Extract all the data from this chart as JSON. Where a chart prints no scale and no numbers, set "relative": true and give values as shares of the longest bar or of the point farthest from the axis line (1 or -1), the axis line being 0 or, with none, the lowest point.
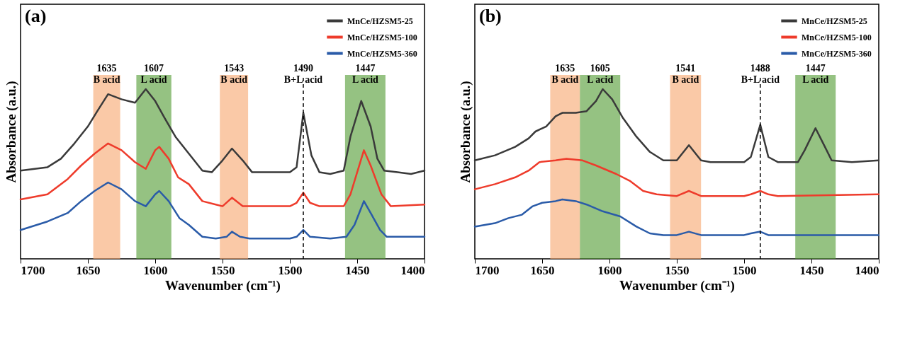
{
  "chart_data": [
    {
      "type": "line",
      "relative": true,
      "xlabel": "Wavenumber (cm⁻¹)",
      "ylabel": "Absorbance (a.u.)",
      "xlim": [
        1700,
        1400
      ],
      "xticks": [
        1700,
        1650,
        1600,
        1550,
        1500,
        1450,
        1400
      ],
      "legend": "top right",
      "annotations": [
        "(a)"
      ],
      "series": [
        {
          "name": "MnCe/HZSM5-25",
          "color": "#3a3a3a",
          "x": [
            1700,
            1680,
            1670,
            1660,
            1650,
            1643,
            1635,
            1625,
            1615,
            1607,
            1600,
            1593,
            1585,
            1575,
            1565,
            1558,
            1550,
            1543,
            1535,
            1528,
            1520,
            1510,
            1500,
            1495,
            1490,
            1484,
            1478,
            1470,
            1460,
            1455,
            1447,
            1440,
            1435,
            1430,
            1420,
            1410,
            1400
          ],
          "values": [
            0.52,
            0.54,
            0.59,
            0.68,
            0.78,
            0.87,
            0.97,
            0.94,
            0.92,
            1.0,
            0.93,
            0.83,
            0.72,
            0.62,
            0.52,
            0.51,
            0.58,
            0.65,
            0.58,
            0.51,
            0.51,
            0.51,
            0.51,
            0.54,
            0.86,
            0.61,
            0.51,
            0.5,
            0.52,
            0.72,
            0.93,
            0.78,
            0.59,
            0.52,
            0.51,
            0.5,
            0.52
          ]
        },
        {
          "name": "MnCe/HZSM5-100",
          "color": "#ee3b2b",
          "x": [
            1700,
            1680,
            1665,
            1655,
            1645,
            1635,
            1625,
            1615,
            1607,
            1600,
            1597,
            1590,
            1583,
            1575,
            1565,
            1555,
            1550,
            1543,
            1535,
            1520,
            1500,
            1495,
            1490,
            1485,
            1478,
            1460,
            1455,
            1445,
            1440,
            1432,
            1425,
            1400
          ],
          "values": [
            0.35,
            0.38,
            0.47,
            0.55,
            0.62,
            0.68,
            0.64,
            0.57,
            0.53,
            0.64,
            0.66,
            0.59,
            0.48,
            0.44,
            0.34,
            0.32,
            0.31,
            0.36,
            0.31,
            0.31,
            0.31,
            0.33,
            0.39,
            0.33,
            0.31,
            0.31,
            0.38,
            0.64,
            0.55,
            0.38,
            0.31,
            0.32
          ]
        },
        {
          "name": "MnCe/HZSM5-360",
          "color": "#2a5ba8",
          "x": [
            1700,
            1680,
            1665,
            1655,
            1645,
            1635,
            1625,
            1615,
            1607,
            1600,
            1597,
            1590,
            1582,
            1575,
            1565,
            1555,
            1547,
            1543,
            1537,
            1530,
            1500,
            1495,
            1490,
            1485,
            1470,
            1458,
            1452,
            1445,
            1440,
            1433,
            1428,
            1400
          ],
          "values": [
            0.17,
            0.22,
            0.27,
            0.34,
            0.4,
            0.45,
            0.41,
            0.34,
            0.31,
            0.38,
            0.4,
            0.34,
            0.24,
            0.2,
            0.13,
            0.12,
            0.13,
            0.16,
            0.13,
            0.12,
            0.12,
            0.13,
            0.17,
            0.13,
            0.12,
            0.13,
            0.2,
            0.34,
            0.27,
            0.17,
            0.13,
            0.13
          ]
        }
      ],
      "bands": [
        {
          "axis": "x",
          "from": 1646,
          "to": 1626,
          "label": "1635\nB acid",
          "color": "#f7a56c"
        },
        {
          "axis": "x",
          "from": 1614,
          "to": 1588,
          "label": "1607\nL acid",
          "color": "#4f9a2f"
        },
        {
          "axis": "x",
          "from": 1552,
          "to": 1531,
          "label": "1543\nB acid",
          "color": "#f7a56c"
        },
        {
          "axis": "x",
          "from": 1459,
          "to": 1429,
          "label": "1447\nL acid",
          "color": "#4f9a2f"
        }
      ],
      "ref_lines": [
        {
          "axis": "x",
          "value": 1490,
          "label": "1490\nB+L acid",
          "color": "#000000",
          "line_style": "dashed"
        }
      ]
    },
    {
      "type": "line",
      "relative": true,
      "xlabel": "Wavenumber (cm⁻¹)",
      "ylabel": "Absorbance (a.u.)",
      "xlim": [
        1700,
        1400
      ],
      "xticks": [
        1700,
        1650,
        1600,
        1550,
        1500,
        1450,
        1400
      ],
      "legend": "top right",
      "annotations": [
        "(b)"
      ],
      "series": [
        {
          "name": "MnCe/HZSM5-25",
          "color": "#3a3a3a",
          "x": [
            1700,
            1685,
            1670,
            1660,
            1655,
            1647,
            1640,
            1635,
            1625,
            1617,
            1610,
            1605,
            1598,
            1590,
            1580,
            1570,
            1560,
            1550,
            1541,
            1532,
            1525,
            1500,
            1495,
            1488,
            1482,
            1475,
            1460,
            1455,
            1447,
            1440,
            1435,
            1420,
            1400
          ],
          "values": [
            0.58,
            0.61,
            0.66,
            0.71,
            0.75,
            0.78,
            0.84,
            0.86,
            0.86,
            0.87,
            0.93,
            1.0,
            0.94,
            0.83,
            0.72,
            0.63,
            0.58,
            0.58,
            0.67,
            0.58,
            0.57,
            0.57,
            0.6,
            0.79,
            0.6,
            0.57,
            0.57,
            0.64,
            0.77,
            0.66,
            0.58,
            0.57,
            0.58
          ]
        },
        {
          "name": "MnCe/HZSM5-100",
          "color": "#ee3b2b",
          "x": [
            1700,
            1685,
            1670,
            1660,
            1652,
            1640,
            1632,
            1620,
            1610,
            1595,
            1585,
            1575,
            1565,
            1550,
            1541,
            1532,
            1500,
            1495,
            1488,
            1482,
            1475,
            1400
          ],
          "values": [
            0.41,
            0.44,
            0.48,
            0.52,
            0.57,
            0.58,
            0.59,
            0.58,
            0.55,
            0.5,
            0.46,
            0.4,
            0.38,
            0.37,
            0.4,
            0.37,
            0.37,
            0.38,
            0.4,
            0.38,
            0.37,
            0.38
          ]
        },
        {
          "name": "MnCe/HZSM5-360",
          "color": "#2a5ba8",
          "x": [
            1700,
            1685,
            1675,
            1665,
            1657,
            1650,
            1640,
            1635,
            1625,
            1617,
            1605,
            1592,
            1580,
            1570,
            1560,
            1550,
            1541,
            1532,
            1500,
            1495,
            1488,
            1482,
            1470,
            1400
          ],
          "values": [
            0.19,
            0.21,
            0.24,
            0.26,
            0.31,
            0.33,
            0.34,
            0.35,
            0.34,
            0.32,
            0.28,
            0.25,
            0.19,
            0.15,
            0.14,
            0.14,
            0.16,
            0.14,
            0.14,
            0.15,
            0.16,
            0.14,
            0.14,
            0.14
          ]
        }
      ],
      "bands": [
        {
          "axis": "x",
          "from": 1644,
          "to": 1622,
          "label": "1635\nB acid",
          "color": "#f7a56c"
        },
        {
          "axis": "x",
          "from": 1622,
          "to": 1592,
          "label": "1605\nL acid",
          "color": "#4f9a2f"
        },
        {
          "axis": "x",
          "from": 1555,
          "to": 1532,
          "label": "1541\nB acid",
          "color": "#f7a56c"
        },
        {
          "axis": "x",
          "from": 1462,
          "to": 1432,
          "label": "1447\nL acid",
          "color": "#4f9a2f"
        }
      ],
      "ref_lines": [
        {
          "axis": "x",
          "value": 1488,
          "label": "1488\nB+L acid",
          "color": "#000000",
          "line_style": "dashed"
        }
      ]
    }
  ]
}
